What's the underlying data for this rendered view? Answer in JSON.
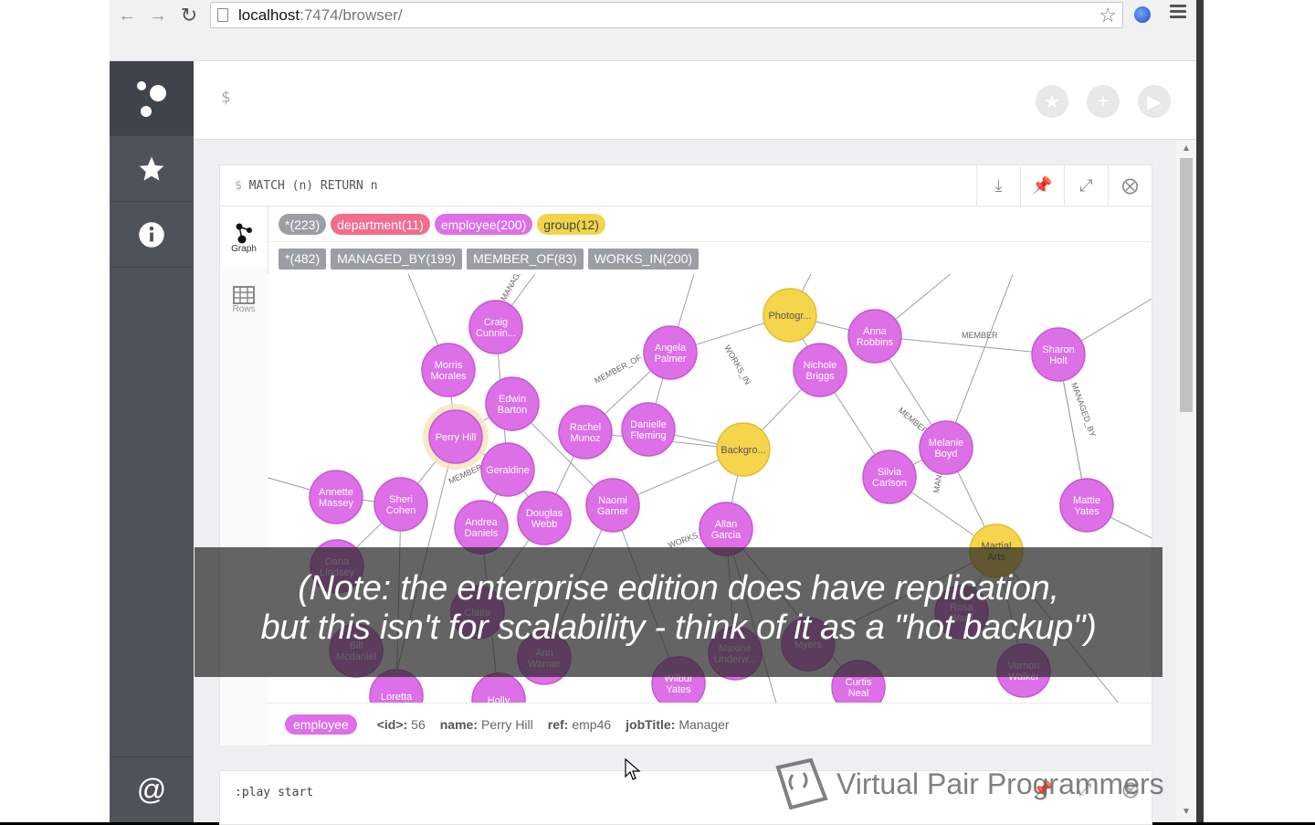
{
  "browser": {
    "url_host": "localhost",
    "url_path": ":7474/browser/"
  },
  "editor": {
    "prompt": "$"
  },
  "frame": {
    "command_prefix": "$",
    "command": "MATCH (n) RETURN n",
    "tabs": [
      {
        "label": "Graph",
        "icon": "graph-icon"
      },
      {
        "label": "Rows",
        "icon": "table-icon"
      }
    ],
    "node_labels": [
      {
        "text": "*(223)",
        "color": "#9b9ea3"
      },
      {
        "text": "department(11)",
        "color": "#f26c8e"
      },
      {
        "text": "employee(200)",
        "color": "#dd6fe7"
      },
      {
        "text": "group(12)",
        "color": "#f0d54a"
      }
    ],
    "rel_types": [
      {
        "text": "*(482)"
      },
      {
        "text": "MANAGED_BY(199)"
      },
      {
        "text": "MEMBER_OF(83)"
      },
      {
        "text": "WORKS_IN(200)"
      }
    ],
    "selected": {
      "label": "employee",
      "id_key": "<id>:",
      "id_val": "56",
      "name_key": "name:",
      "name_val": "Perry Hill",
      "ref_key": "ref:",
      "ref_val": "emp46",
      "title_key": "jobTitle:",
      "title_val": "Manager"
    }
  },
  "graph_nodes": [
    {
      "l1": "Craig",
      "l2": "Cunnin...",
      "kind": "employee"
    },
    {
      "l1": "Morris",
      "l2": "Morales",
      "kind": "employee"
    },
    {
      "l1": "Edwin",
      "l2": "Barton",
      "kind": "employee"
    },
    {
      "l1": "Perry Hill",
      "l2": "",
      "kind": "employee"
    },
    {
      "l1": "Geraldine",
      "l2": "",
      "kind": "employee"
    },
    {
      "l1": "Angela",
      "l2": "Palmer",
      "kind": "employee"
    },
    {
      "l1": "Rachel",
      "l2": "Munoz",
      "kind": "employee"
    },
    {
      "l1": "Danielle",
      "l2": "Fleming",
      "kind": "employee"
    },
    {
      "l1": "Photogr...",
      "l2": "",
      "kind": "group"
    },
    {
      "l1": "Nichole",
      "l2": "Briggs",
      "kind": "employee"
    },
    {
      "l1": "Anna",
      "l2": "Robbins",
      "kind": "employee"
    },
    {
      "l1": "Sharon",
      "l2": "Holt",
      "kind": "employee"
    },
    {
      "l1": "Backgro...",
      "l2": "",
      "kind": "group"
    },
    {
      "l1": "Melanie",
      "l2": "Boyd",
      "kind": "employee"
    },
    {
      "l1": "Silvia",
      "l2": "Carlson",
      "kind": "employee"
    },
    {
      "l1": "Annette",
      "l2": "Massey",
      "kind": "employee"
    },
    {
      "l1": "Sheri",
      "l2": "Cohen",
      "kind": "employee"
    },
    {
      "l1": "Andrea",
      "l2": "Daniels",
      "kind": "employee"
    },
    {
      "l1": "Douglas",
      "l2": "Webb",
      "kind": "employee"
    },
    {
      "l1": "Naomi",
      "l2": "Garner",
      "kind": "employee"
    },
    {
      "l1": "Allan",
      "l2": "Garcia",
      "kind": "employee"
    },
    {
      "l1": "Mattie",
      "l2": "Yates",
      "kind": "employee"
    },
    {
      "l1": "Martial",
      "l2": "Arts",
      "kind": "group"
    },
    {
      "l1": "Dana",
      "l2": "Lindsey",
      "kind": "employee"
    },
    {
      "l1": "Claire",
      "l2": "",
      "kind": "employee"
    },
    {
      "l1": "Bill",
      "l2": "Mcdaniel",
      "kind": "employee"
    },
    {
      "l1": "Ann",
      "l2": "Warner",
      "kind": "employee"
    },
    {
      "l1": "Maxine",
      "l2": "Underw...",
      "kind": "employee"
    },
    {
      "l1": "Myers",
      "l2": "",
      "kind": "employee"
    },
    {
      "l1": "Rosa",
      "l2": "Ward",
      "kind": "employee"
    },
    {
      "l1": "Vernon",
      "l2": "Walker",
      "kind": "employee"
    },
    {
      "l1": "Loretta",
      "l2": "",
      "kind": "employee"
    },
    {
      "l1": "Holly",
      "l2": "",
      "kind": "employee"
    },
    {
      "l1": "Wilbur",
      "l2": "Yates",
      "kind": "employee"
    },
    {
      "l1": "Curtis",
      "l2": "Neal",
      "kind": "employee"
    }
  ],
  "edge_labels": [
    "MANAGED_BY",
    "MEMBER_OF",
    "WORKS_IN",
    "MEMBER"
  ],
  "frame2": {
    "command": ":play start"
  },
  "caption": {
    "line1": "(Note: the enterprise edition does have replication,",
    "line2": "but this isn't for scalability - think of it as a \"hot backup\")"
  },
  "watermark": {
    "text": "Virtual Pair Programmers"
  },
  "colors": {
    "employee": "#dd6fe7",
    "employee_stroke": "#c659d0",
    "group": "#f5d54c",
    "group_stroke": "#e0bc35",
    "department": "#f26c8e",
    "sidebar": "#4d525b"
  }
}
